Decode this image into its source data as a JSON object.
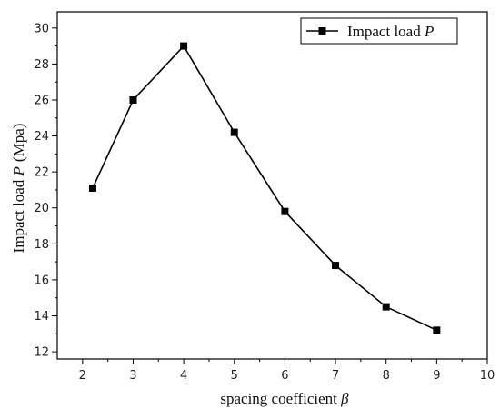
{
  "chart_data": {
    "type": "line",
    "x": [
      2.2,
      3,
      4,
      5,
      6,
      7,
      8,
      9
    ],
    "series": [
      {
        "name": "Impact load P",
        "name_text": "Impact load ",
        "name_symbol": "P",
        "values": [
          21.1,
          26.0,
          29.0,
          24.2,
          19.8,
          16.8,
          14.5,
          13.2
        ]
      }
    ],
    "xlabel": "spacing coefficient β",
    "xlabel_text": "spacing coefficient ",
    "xlabel_symbol": "β",
    "ylabel": "Impact load P (Mpa)",
    "ylabel_text": "Impact load ",
    "ylabel_symbol": "P",
    "ylabel_unit": "(Mpa)",
    "xlim": [
      1.5,
      10
    ],
    "ylim": [
      11.6,
      30.9
    ],
    "xticks": [
      2,
      3,
      4,
      5,
      6,
      7,
      8,
      9,
      10
    ],
    "yticks": [
      12,
      14,
      16,
      18,
      20,
      22,
      24,
      26,
      28,
      30
    ],
    "grid": false,
    "legend_position": "top-right",
    "colors": {
      "line": "#000000",
      "marker": "#000000"
    }
  }
}
